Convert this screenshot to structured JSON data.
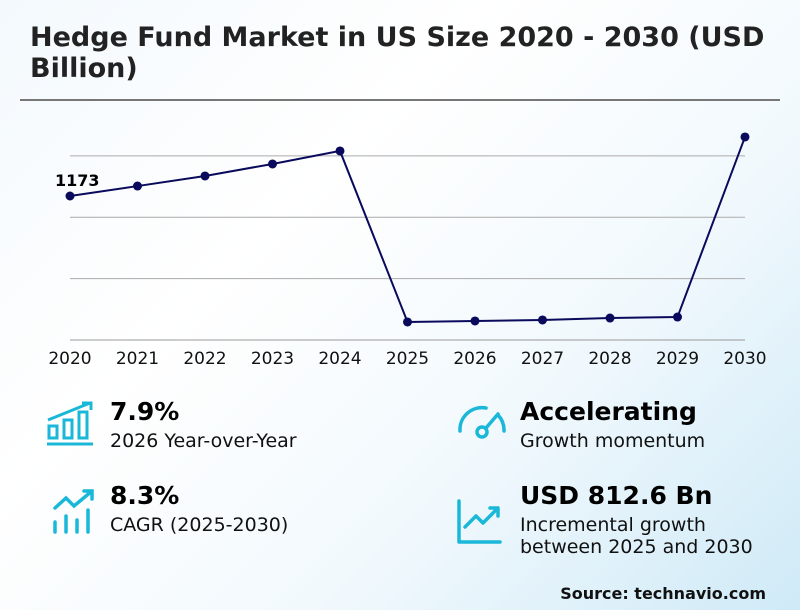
{
  "header": {
    "title": "Hedge Fund Market in US Size 2020 - 2030 (USD Billion)"
  },
  "chart_data": {
    "type": "line",
    "title": "Hedge Fund Market in US Size 2020 - 2030 (USD Billion)",
    "xlabel": "",
    "ylabel": "",
    "categories": [
      "2020",
      "2021",
      "2022",
      "2023",
      "2024",
      "2025",
      "2026",
      "2027",
      "2028",
      "2029",
      "2030"
    ],
    "values": [
      1173,
      1254,
      1336,
      1434,
      1540,
      147,
      155,
      163,
      179,
      187,
      1654
    ],
    "data_labels": [
      {
        "index": 0,
        "text": "1173"
      }
    ],
    "ylim": [
      0,
      1700
    ],
    "gridlines": [
      500,
      1000,
      1500
    ],
    "grid": true,
    "line_color": "#0a0a5c"
  },
  "stats": [
    {
      "value": "7.9%",
      "label": "2026 Year-over-Year",
      "icon": "bar-chart-growth-icon"
    },
    {
      "value": "Accelerating",
      "label": "Growth momentum",
      "icon": "speedometer-icon"
    },
    {
      "value": "8.3%",
      "label": "CAGR (2025-2030)",
      "icon": "trend-bars-icon"
    },
    {
      "value": "USD 812.6 Bn",
      "label_line1": "Incremental growth",
      "label_line2": "between 2025 and 2030",
      "icon": "line-chart-up-icon"
    }
  ],
  "colors": {
    "accent": "#1ab8d8",
    "line": "#0a0a5c"
  },
  "footer": {
    "source": "Source: technavio.com"
  }
}
